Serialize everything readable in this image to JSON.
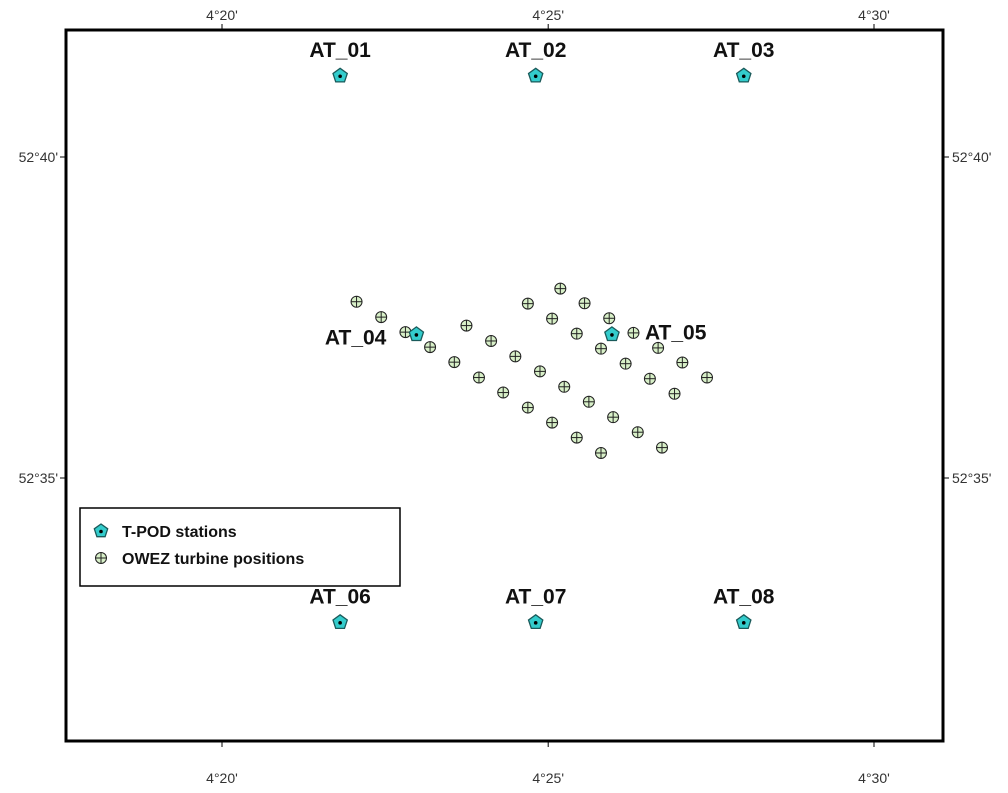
{
  "map": {
    "x_ticks": [
      {
        "label": "4°20'",
        "lon": 4.3333
      },
      {
        "label": "4°25'",
        "lon": 4.4167
      },
      {
        "label": "4°30'",
        "lon": 4.5
      }
    ],
    "y_ticks": [
      {
        "label": "52°40'",
        "lat": 52.6667
      },
      {
        "label": "52°35'",
        "lat": 52.5833
      }
    ],
    "stations": [
      {
        "name": "AT_01",
        "lon": 4.3635,
        "lat": 52.6878,
        "label_side": "above"
      },
      {
        "name": "AT_02",
        "lon": 4.4135,
        "lat": 52.6878,
        "label_side": "above"
      },
      {
        "name": "AT_03",
        "lon": 4.4667,
        "lat": 52.6878,
        "label_side": "above"
      },
      {
        "name": "AT_04",
        "lon": 4.383,
        "lat": 52.6206,
        "label_side": "left"
      },
      {
        "name": "AT_05",
        "lon": 4.433,
        "lat": 52.6206,
        "label_side": "right"
      },
      {
        "name": "AT_06",
        "lon": 4.3635,
        "lat": 52.5458,
        "label_side": "above"
      },
      {
        "name": "AT_07",
        "lon": 4.4135,
        "lat": 52.5458,
        "label_side": "above"
      },
      {
        "name": "AT_08",
        "lon": 4.4667,
        "lat": 52.5458,
        "label_side": "above"
      }
    ],
    "turbines": [
      {
        "lon": 4.3677,
        "lat": 52.6291
      },
      {
        "lon": 4.374,
        "lat": 52.6251
      },
      {
        "lon": 4.3802,
        "lat": 52.6212
      },
      {
        "lon": 4.3865,
        "lat": 52.6173
      },
      {
        "lon": 4.3927,
        "lat": 52.6134
      },
      {
        "lon": 4.399,
        "lat": 52.6094
      },
      {
        "lon": 4.4052,
        "lat": 52.6055
      },
      {
        "lon": 4.4115,
        "lat": 52.6016
      },
      {
        "lon": 4.4177,
        "lat": 52.5977
      },
      {
        "lon": 4.424,
        "lat": 52.5938
      },
      {
        "lon": 4.4302,
        "lat": 52.5898
      },
      {
        "lon": 4.3958,
        "lat": 52.6229
      },
      {
        "lon": 4.4021,
        "lat": 52.6189
      },
      {
        "lon": 4.4083,
        "lat": 52.6149
      },
      {
        "lon": 4.4146,
        "lat": 52.611
      },
      {
        "lon": 4.4208,
        "lat": 52.607
      },
      {
        "lon": 4.4271,
        "lat": 52.6031
      },
      {
        "lon": 4.4333,
        "lat": 52.5991
      },
      {
        "lon": 4.4396,
        "lat": 52.5952
      },
      {
        "lon": 4.4458,
        "lat": 52.5912
      },
      {
        "lon": 4.4115,
        "lat": 52.6286
      },
      {
        "lon": 4.4177,
        "lat": 52.6247
      },
      {
        "lon": 4.424,
        "lat": 52.6208
      },
      {
        "lon": 4.4302,
        "lat": 52.6169
      },
      {
        "lon": 4.4365,
        "lat": 52.613
      },
      {
        "lon": 4.4427,
        "lat": 52.6091
      },
      {
        "lon": 4.449,
        "lat": 52.6052
      },
      {
        "lon": 4.4198,
        "lat": 52.6325
      },
      {
        "lon": 4.426,
        "lat": 52.6287
      },
      {
        "lon": 4.4323,
        "lat": 52.6248
      },
      {
        "lon": 4.4385,
        "lat": 52.621
      },
      {
        "lon": 4.4448,
        "lat": 52.6171
      },
      {
        "lon": 4.451,
        "lat": 52.6133
      },
      {
        "lon": 4.4573,
        "lat": 52.6094
      }
    ],
    "legend": {
      "stations_label": "T-POD stations",
      "turbines_label": "OWEZ turbine positions"
    },
    "colors": {
      "station_fill": "#33cccc",
      "station_stroke": "#1a5a5a",
      "turbine_fill": "#d8f0c8",
      "turbine_stroke": "#222222",
      "frame": "#000000"
    },
    "icons": {
      "station": "pentagon-icon",
      "turbine": "circled-plus-icon"
    }
  }
}
